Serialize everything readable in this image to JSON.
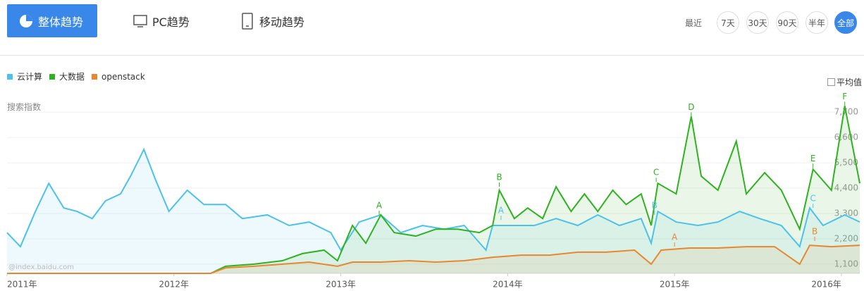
{
  "ui": {
    "tabs": [
      "整体趋势",
      "PC趋势",
      "移动趋势"
    ],
    "range_label": "最近",
    "ranges": [
      "7天",
      "30天",
      "90天",
      "半年",
      "全部"
    ],
    "average_label": "平均值",
    "watermark": "@index.baidu.com"
  },
  "chart_data": {
    "type": "line",
    "y_label": "搜索指数",
    "series": [
      {
        "name": "云计算",
        "color": "#4cc2ea",
        "x": [
          2011.0,
          2011.08,
          2011.17,
          2011.25,
          2011.34,
          2011.42,
          2011.51,
          2011.59,
          2011.68,
          2011.74,
          2011.82,
          2011.89,
          2011.97,
          2012.08,
          2012.18,
          2012.31,
          2012.41,
          2012.56,
          2012.69,
          2012.81,
          2012.94,
          2013.0,
          2013.11,
          2013.24,
          2013.36,
          2013.49,
          2013.62,
          2013.74,
          2013.87,
          2013.91,
          2014.04,
          2014.16,
          2014.29,
          2014.42,
          2014.54,
          2014.67,
          2014.8,
          2014.86,
          2014.9,
          2015.01,
          2015.14,
          2015.26,
          2015.39,
          2015.51,
          2015.64,
          2015.75,
          2015.81,
          2015.89,
          2016.02,
          2016.11
        ],
        "values": [
          2470,
          1860,
          3390,
          4610,
          3540,
          3390,
          3080,
          3850,
          4150,
          4920,
          6080,
          4760,
          3390,
          4310,
          3690,
          3690,
          3080,
          3240,
          2780,
          2930,
          2470,
          1710,
          2930,
          3240,
          2470,
          2780,
          2620,
          2780,
          1710,
          2780,
          2780,
          2780,
          3080,
          2780,
          3240,
          2780,
          3080,
          2010,
          3390,
          2930,
          2780,
          2930,
          3390,
          3080,
          2780,
          1860,
          3540,
          2780,
          3240,
          2930
        ]
      },
      {
        "name": "大数据",
        "color": "#2fb21f",
        "x": [
          2011.0,
          2012.22,
          2012.31,
          2012.48,
          2012.65,
          2012.77,
          2012.9,
          2012.98,
          2013.07,
          2013.15,
          2013.24,
          2013.32,
          2013.45,
          2013.57,
          2013.7,
          2013.83,
          2013.91,
          2013.95,
          2014.04,
          2014.12,
          2014.21,
          2014.29,
          2014.38,
          2014.46,
          2014.54,
          2014.63,
          2014.71,
          2014.8,
          2014.86,
          2014.9,
          2015.01,
          2015.1,
          2015.16,
          2015.26,
          2015.37,
          2015.43,
          2015.54,
          2015.64,
          2015.75,
          2015.83,
          2015.94,
          2016.02,
          2016.11
        ],
        "values": [
          700,
          700,
          1010,
          1100,
          1250,
          1560,
          1710,
          1250,
          2780,
          2010,
          3240,
          2470,
          2320,
          2620,
          2620,
          2470,
          2780,
          4310,
          3080,
          3540,
          3080,
          4460,
          3390,
          4150,
          3390,
          4310,
          3690,
          4150,
          2780,
          4610,
          4150,
          7510,
          4920,
          4310,
          6440,
          4150,
          5070,
          4310,
          2620,
          5220,
          4310,
          7970,
          4610
        ]
      },
      {
        "name": "openstack",
        "color": "#e8872e",
        "x": [
          2011.0,
          2012.22,
          2012.31,
          2012.48,
          2012.65,
          2012.81,
          2012.98,
          2013.07,
          2013.24,
          2013.41,
          2013.57,
          2013.74,
          2013.91,
          2014.08,
          2014.25,
          2014.42,
          2014.59,
          2014.76,
          2014.86,
          2014.92,
          2015.09,
          2015.26,
          2015.43,
          2015.6,
          2015.75,
          2015.81,
          2015.94,
          2016.11
        ],
        "values": [
          700,
          700,
          940,
          1010,
          1100,
          1190,
          1010,
          1190,
          1190,
          1250,
          1190,
          1250,
          1400,
          1490,
          1490,
          1620,
          1620,
          1710,
          1100,
          1710,
          1800,
          1800,
          1860,
          1860,
          1100,
          1920,
          1860,
          1920
        ]
      }
    ],
    "xlim": [
      2011,
      2016.11
    ],
    "xticks": [
      {
        "value": 2011,
        "label": "2011年"
      },
      {
        "value": 2012,
        "label": "2012年"
      },
      {
        "value": 2013,
        "label": "2013年"
      },
      {
        "value": 2014,
        "label": "2014年"
      },
      {
        "value": 2015,
        "label": "2015年"
      },
      {
        "value": 2016,
        "label": "2016年"
      }
    ],
    "ylim": [
      700,
      8500
    ],
    "yticks": [
      {
        "value": 1100,
        "label": "1,100"
      },
      {
        "value": 2200,
        "label": "2,200"
      },
      {
        "value": 3300,
        "label": "3,300"
      },
      {
        "value": 4400,
        "label": "4,400"
      },
      {
        "value": 5500,
        "label": "5,500"
      },
      {
        "value": 6600,
        "label": "6,600"
      },
      {
        "value": 7700,
        "label": "7,700"
      }
    ],
    "grid": true,
    "annotations": [
      {
        "label": "A",
        "series": 1,
        "x": 2013.23,
        "y": 3240
      },
      {
        "label": "B",
        "series": 1,
        "x": 2013.95,
        "y": 4460
      },
      {
        "label": "C",
        "series": 1,
        "x": 2014.89,
        "y": 4670
      },
      {
        "label": "D",
        "series": 1,
        "x": 2015.1,
        "y": 7510
      },
      {
        "label": "E",
        "series": 1,
        "x": 2015.83,
        "y": 5280
      },
      {
        "label": "F",
        "series": 1,
        "x": 2016.02,
        "y": 7970
      },
      {
        "label": "A",
        "series": 0,
        "x": 2013.96,
        "y": 3020
      },
      {
        "label": "B",
        "series": 0,
        "x": 2014.88,
        "y": 3240
      },
      {
        "label": "C",
        "series": 0,
        "x": 2015.83,
        "y": 3540
      },
      {
        "label": "A",
        "series": 2,
        "x": 2015.0,
        "y": 1860
      },
      {
        "label": "B",
        "series": 2,
        "x": 2015.84,
        "y": 2110
      }
    ]
  }
}
